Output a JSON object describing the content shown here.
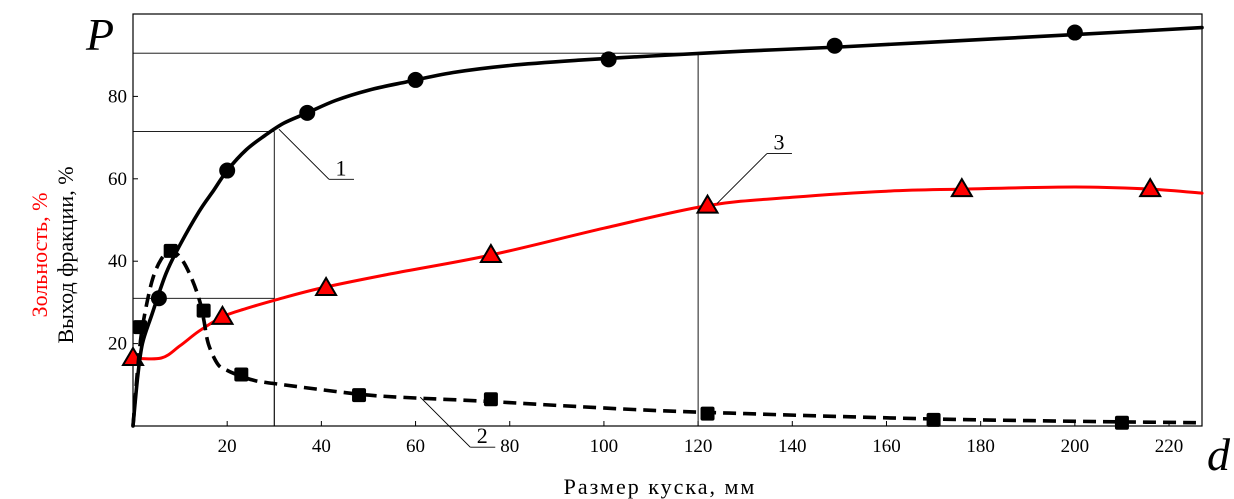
{
  "chart_data": {
    "type": "line",
    "xlabel": "Размер куска, мм",
    "ylabel": "Выход фракции, %",
    "ylabel2": "Зольность, %",
    "x_symbol": "d",
    "y_symbol": "P",
    "xlim": [
      0,
      227
    ],
    "ylim": [
      0,
      100
    ],
    "x_ticks": [
      "20",
      "40",
      "60",
      "80",
      "100",
      "120",
      "140",
      "160",
      "180",
      "200",
      "220"
    ],
    "y_ticks": [
      "20",
      "40",
      "60",
      "80"
    ],
    "grid": false,
    "series": [
      {
        "name": "1",
        "color": "#000000",
        "style": "solid",
        "marker": "circle",
        "x": [
          0,
          1,
          2,
          4,
          7,
          10,
          14,
          17,
          20,
          24,
          28,
          32,
          37,
          43,
          50,
          58,
          68,
          80,
          95,
          110,
          130,
          150,
          175,
          200,
          227
        ],
        "y": [
          0,
          12,
          20,
          27,
          37,
          44,
          52,
          57,
          62,
          67,
          70.5,
          73.5,
          76,
          79,
          81.5,
          83.5,
          85.8,
          87.5,
          88.8,
          89.8,
          91,
          92,
          93.5,
          95,
          96.7
        ],
        "markers_x": [
          5.5,
          20,
          37,
          60,
          101,
          149,
          200
        ],
        "markers_y": [
          31,
          62,
          76,
          84,
          89,
          92.3,
          95.5
        ]
      },
      {
        "name": "2",
        "color": "#000000",
        "style": "dashed",
        "marker": "square",
        "x": [
          0,
          1,
          2,
          4,
          6,
          8,
          10,
          12,
          14,
          15,
          16,
          18,
          20,
          22,
          26,
          32,
          40,
          50,
          60,
          75,
          90,
          110,
          130,
          150,
          170,
          190,
          210,
          227
        ],
        "y": [
          0,
          14,
          24,
          35,
          40.5,
          42.5,
          41,
          37,
          31,
          26,
          20,
          15,
          13.5,
          12.5,
          11,
          10,
          8.8,
          7.5,
          6.8,
          6,
          5,
          3.8,
          3,
          2.3,
          1.7,
          1.3,
          1,
          0.8
        ],
        "markers_x": [
          1.5,
          8,
          15,
          23,
          48,
          76,
          122,
          170,
          210
        ],
        "markers_y": [
          24,
          42.5,
          28,
          12.5,
          7.5,
          6.5,
          3,
          1.5,
          0.8
        ]
      },
      {
        "name": "3",
        "color": "#ff0000",
        "style": "solid",
        "marker": "triangle",
        "x": [
          0,
          6,
          10,
          14,
          19,
          24,
          30,
          40,
          55,
          76,
          100,
          122,
          140,
          160,
          176,
          200,
          216,
          227
        ],
        "y": [
          16.5,
          16.5,
          19.5,
          23,
          26.5,
          28.5,
          30.5,
          33.5,
          37,
          41.5,
          48,
          53.5,
          55.5,
          57,
          57.5,
          58,
          57.5,
          56.5
        ],
        "markers_x": [
          0,
          19,
          41,
          76,
          122,
          176,
          216
        ],
        "markers_y": [
          16.5,
          26.5,
          33.5,
          41.5,
          53.5,
          57.5,
          57.5
        ]
      }
    ],
    "reference_lines": [
      {
        "x": 30,
        "y": 71.5
      },
      {
        "x": 30,
        "y": 31
      },
      {
        "x": 120,
        "y": 90.5
      }
    ],
    "callouts": [
      {
        "label": "1",
        "series": "1",
        "anchor_x": 31,
        "anchor_y": 72
      },
      {
        "label": "2",
        "series": "2",
        "anchor_x": 61,
        "anchor_y": 7
      },
      {
        "label": "3",
        "series": "3",
        "anchor_x": 124,
        "anchor_y": 54
      }
    ]
  }
}
